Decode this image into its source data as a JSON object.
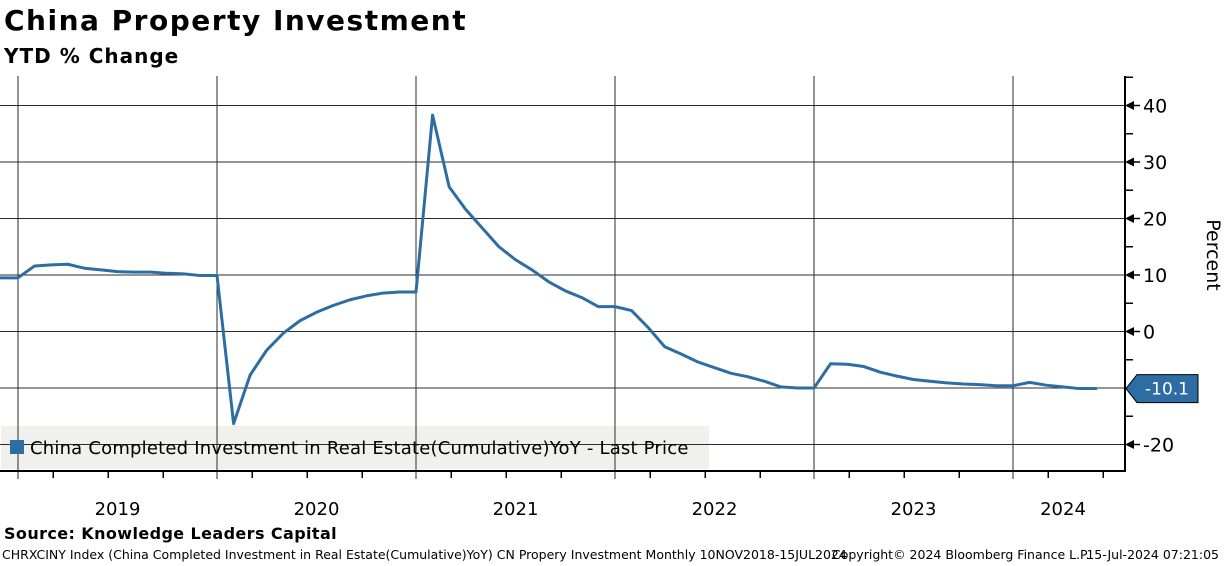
{
  "header": {
    "title": "China Property Investment",
    "subtitle": "YTD % Change"
  },
  "legend": {
    "label": "China Completed Investment in Real Estate(Cumulative)YoY - Last Price"
  },
  "source_line": "Source: Knowledge Leaders Capital",
  "footer": {
    "left": "CHRXCINY Index (China Completed Investment in Real Estate(Cumulative)YoY) CN Propery Investment  Monthly 10NOV2018-15JUL2024",
    "copyright": "Copyright© 2024 Bloomberg Finance L.P.",
    "timestamp": "15-Jul-2024 07:21:05"
  },
  "colors": {
    "line": "#2e6da4",
    "price_tag_fill": "#2e6da4",
    "price_tag_text": "#ffffff",
    "price_tag_border": "#000000",
    "legend_bg": "#f0f0ef",
    "grid": "#2b2b2b",
    "axis": "#000000",
    "text": "#000000"
  },
  "chart_data": {
    "type": "line",
    "title": "China Property Investment",
    "subtitle": "YTD % Change",
    "ylabel": "Percent",
    "ylim": [
      -24.7,
      45.2
    ],
    "grid": true,
    "legend_position": "bottom-left",
    "last_price": "-10.1",
    "ytick_major": [
      40,
      30,
      20,
      10,
      0,
      -10,
      -20
    ],
    "ytick_labels": [
      "40",
      "30",
      "20",
      "10",
      "0",
      "",
      "-20"
    ],
    "ytick_minor": [
      45,
      35,
      25,
      15,
      5,
      -5,
      -15
    ],
    "xtick_years": [
      "2019",
      "2020",
      "2021",
      "2022",
      "2023",
      "2024"
    ],
    "x_range": [
      "2018-11",
      "2024-06"
    ],
    "series": [
      {
        "name": "China Completed Investment in Real Estate(Cumulative)YoY - Last Price",
        "points": [
          [
            "2018-11",
            9.7
          ],
          [
            "2018-12",
            9.5
          ],
          [
            "2019-01",
            9.5
          ],
          [
            "2019-02",
            11.6
          ],
          [
            "2019-03",
            11.8
          ],
          [
            "2019-04",
            11.9
          ],
          [
            "2019-05",
            11.2
          ],
          [
            "2019-06",
            10.9
          ],
          [
            "2019-07",
            10.6
          ],
          [
            "2019-08",
            10.5
          ],
          [
            "2019-09",
            10.5
          ],
          [
            "2019-10",
            10.3
          ],
          [
            "2019-11",
            10.2
          ],
          [
            "2019-12",
            9.9
          ],
          [
            "2020-01",
            9.9
          ],
          [
            "2020-02",
            -16.3
          ],
          [
            "2020-03",
            -7.7
          ],
          [
            "2020-04",
            -3.3
          ],
          [
            "2020-05",
            -0.3
          ],
          [
            "2020-06",
            1.9
          ],
          [
            "2020-07",
            3.4
          ],
          [
            "2020-08",
            4.6
          ],
          [
            "2020-09",
            5.6
          ],
          [
            "2020-10",
            6.3
          ],
          [
            "2020-11",
            6.8
          ],
          [
            "2020-12",
            7.0
          ],
          [
            "2021-01",
            7.0
          ],
          [
            "2021-02",
            38.3
          ],
          [
            "2021-03",
            25.6
          ],
          [
            "2021-04",
            21.6
          ],
          [
            "2021-05",
            18.3
          ],
          [
            "2021-06",
            15.0
          ],
          [
            "2021-07",
            12.7
          ],
          [
            "2021-08",
            10.9
          ],
          [
            "2021-09",
            8.8
          ],
          [
            "2021-10",
            7.2
          ],
          [
            "2021-11",
            6.0
          ],
          [
            "2021-12",
            4.4
          ],
          [
            "2022-01",
            4.4
          ],
          [
            "2022-02",
            3.7
          ],
          [
            "2022-03",
            0.7
          ],
          [
            "2022-04",
            -2.7
          ],
          [
            "2022-05",
            -4.0
          ],
          [
            "2022-06",
            -5.4
          ],
          [
            "2022-07",
            -6.4
          ],
          [
            "2022-08",
            -7.4
          ],
          [
            "2022-09",
            -8.0
          ],
          [
            "2022-10",
            -8.8
          ],
          [
            "2022-11",
            -9.8
          ],
          [
            "2022-12",
            -10.0
          ],
          [
            "2023-01",
            -10.0
          ],
          [
            "2023-02",
            -5.7
          ],
          [
            "2023-03",
            -5.8
          ],
          [
            "2023-04",
            -6.2
          ],
          [
            "2023-05",
            -7.2
          ],
          [
            "2023-06",
            -7.9
          ],
          [
            "2023-07",
            -8.5
          ],
          [
            "2023-08",
            -8.8
          ],
          [
            "2023-09",
            -9.1
          ],
          [
            "2023-10",
            -9.3
          ],
          [
            "2023-11",
            -9.4
          ],
          [
            "2023-12",
            -9.6
          ],
          [
            "2024-01",
            -9.6
          ],
          [
            "2024-02",
            -9.0
          ],
          [
            "2024-03",
            -9.5
          ],
          [
            "2024-04",
            -9.8
          ],
          [
            "2024-05",
            -10.1
          ],
          [
            "2024-06",
            -10.1
          ]
        ]
      }
    ]
  }
}
